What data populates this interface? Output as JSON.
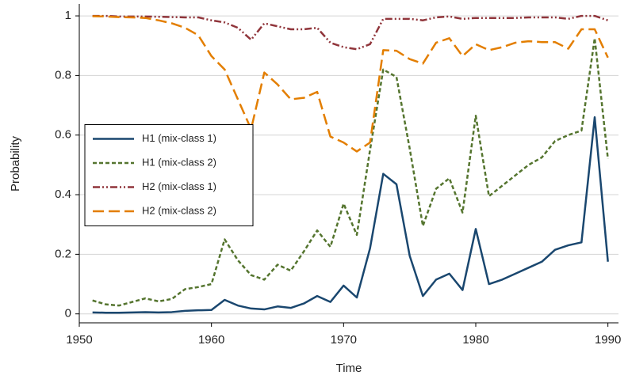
{
  "chart_data": {
    "type": "line",
    "x_label": "Time",
    "y_label": "Probability",
    "x": [
      1951,
      1952,
      1953,
      1954,
      1955,
      1956,
      1957,
      1958,
      1959,
      1960,
      1961,
      1962,
      1963,
      1964,
      1965,
      1966,
      1967,
      1968,
      1969,
      1970,
      1971,
      1972,
      1973,
      1974,
      1975,
      1976,
      1977,
      1978,
      1979,
      1980,
      1981,
      1982,
      1983,
      1984,
      1985,
      1986,
      1987,
      1988,
      1989,
      1990
    ],
    "series": [
      {
        "name": "H1 (mix-class 1)",
        "color": "#1a476f",
        "dash": "solid",
        "values": [
          0.005,
          0.004,
          0.004,
          0.005,
          0.006,
          0.005,
          0.006,
          0.01,
          0.012,
          0.013,
          0.047,
          0.028,
          0.018,
          0.015,
          0.025,
          0.02,
          0.035,
          0.06,
          0.04,
          0.095,
          0.055,
          0.22,
          0.47,
          0.435,
          0.195,
          0.06,
          0.115,
          0.135,
          0.08,
          0.285,
          0.1,
          0.115,
          0.135,
          0.155,
          0.175,
          0.215,
          0.23,
          0.24,
          0.66,
          0.175
        ]
      },
      {
        "name": "H1 (mix-class 2)",
        "color": "#55752f",
        "dash": "short-dash",
        "values": [
          0.045,
          0.032,
          0.028,
          0.04,
          0.052,
          0.042,
          0.05,
          0.083,
          0.09,
          0.1,
          0.25,
          0.18,
          0.13,
          0.115,
          0.165,
          0.145,
          0.21,
          0.28,
          0.225,
          0.37,
          0.265,
          0.55,
          0.82,
          0.795,
          0.555,
          0.295,
          0.42,
          0.455,
          0.34,
          0.665,
          0.395,
          0.43,
          0.465,
          0.5,
          0.525,
          0.58,
          0.6,
          0.615,
          0.925,
          0.52
        ]
      },
      {
        "name": "H2 (mix-class 1)",
        "color": "#90353b",
        "dash": "dash-dot-dot",
        "values": [
          1,
          1,
          0.998,
          0.998,
          0.998,
          0.997,
          0.996,
          0.995,
          0.995,
          0.985,
          0.978,
          0.96,
          0.92,
          0.975,
          0.965,
          0.955,
          0.955,
          0.96,
          0.91,
          0.895,
          0.888,
          0.905,
          0.99,
          0.99,
          0.99,
          0.985,
          0.995,
          0.998,
          0.99,
          0.993,
          0.993,
          0.993,
          0.993,
          0.995,
          0.995,
          0.995,
          0.99,
          1,
          1,
          0.985
        ]
      },
      {
        "name": "H2 (mix-class 2)",
        "color": "#e37e00",
        "dash": "long-dash",
        "values": [
          0.999,
          0.998,
          0.996,
          0.995,
          0.993,
          0.985,
          0.975,
          0.96,
          0.935,
          0.865,
          0.82,
          0.72,
          0.62,
          0.81,
          0.77,
          0.72,
          0.725,
          0.745,
          0.595,
          0.575,
          0.545,
          0.575,
          0.885,
          0.883,
          0.855,
          0.84,
          0.91,
          0.925,
          0.865,
          0.905,
          0.885,
          0.895,
          0.91,
          0.915,
          0.912,
          0.912,
          0.89,
          0.955,
          0.955,
          0.86
        ]
      }
    ],
    "xlim": [
      1950,
      1990.8
    ],
    "xticks": [
      1950,
      1960,
      1970,
      1980,
      1990
    ],
    "ylim": [
      -0.03,
      1.04
    ],
    "yticks": [
      0,
      0.2,
      0.4,
      0.6,
      0.8,
      1
    ],
    "grid": true,
    "legend_position": "left"
  }
}
